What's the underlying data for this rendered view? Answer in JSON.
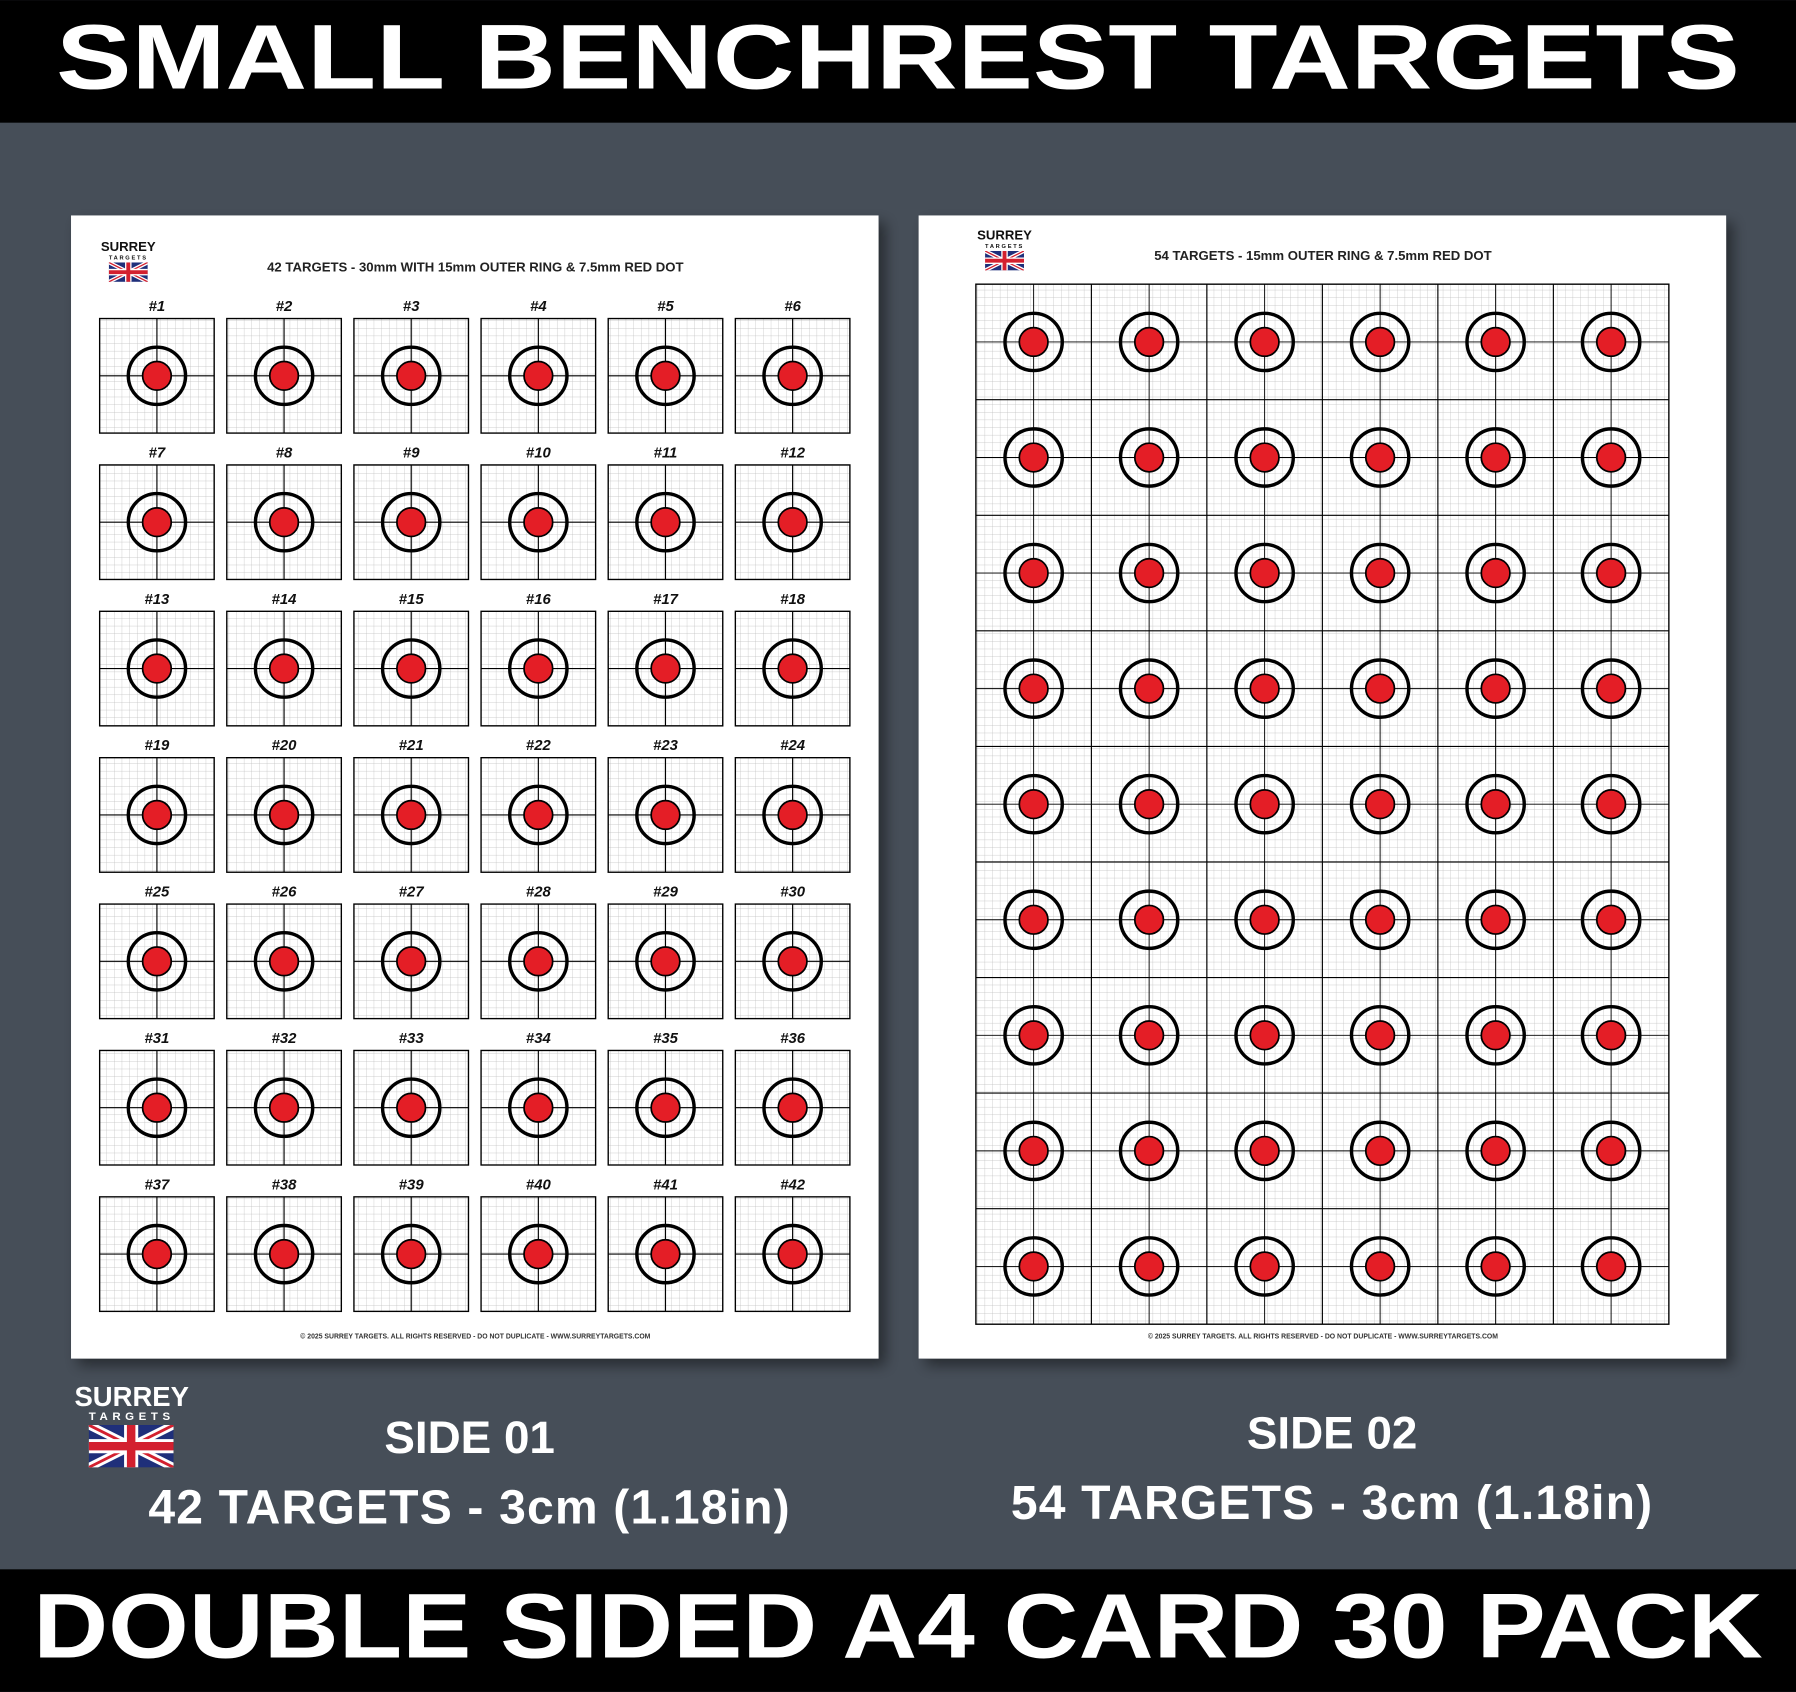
{
  "title": "SMALL BENCHREST TARGETS",
  "banner": "DOUBLE SIDED A4 CARD 30 PACK",
  "logo": {
    "name": "SURREY",
    "tagline": "TARGETS"
  },
  "sheets": [
    {
      "heading": "42 TARGETS - 30mm WITH 15mm OUTER RING & 7.5mm RED DOT",
      "labels": [
        "#1",
        "#2",
        "#3",
        "#4",
        "#5",
        "#6",
        "#7",
        "#8",
        "#9",
        "#10",
        "#11",
        "#12",
        "#13",
        "#14",
        "#15",
        "#16",
        "#17",
        "#18",
        "#19",
        "#20",
        "#21",
        "#22",
        "#23",
        "#24",
        "#25",
        "#26",
        "#27",
        "#28",
        "#29",
        "#30",
        "#31",
        "#32",
        "#33",
        "#34",
        "#35",
        "#36",
        "#37",
        "#38",
        "#39",
        "#40",
        "#41",
        "#42"
      ],
      "footer": "© 2025 SURREY TARGETS. ALL RIGHTS RESERVED - DO NOT DUPLICATE - WWW.SURREYTARGETS.COM"
    },
    {
      "heading": "54 TARGETS - 15mm OUTER RING & 7.5mm RED DOT",
      "footer": "© 2025 SURREY TARGETS. ALL RIGHTS RESERVED - DO NOT DUPLICATE - WWW.SURREYTARGETS.COM"
    }
  ],
  "captions": [
    {
      "side": "SIDE 01",
      "detail": "42 TARGETS - 3cm (1.18in)"
    },
    {
      "side": "SIDE 02",
      "detail": "54 TARGETS - 3cm (1.18in)"
    }
  ]
}
